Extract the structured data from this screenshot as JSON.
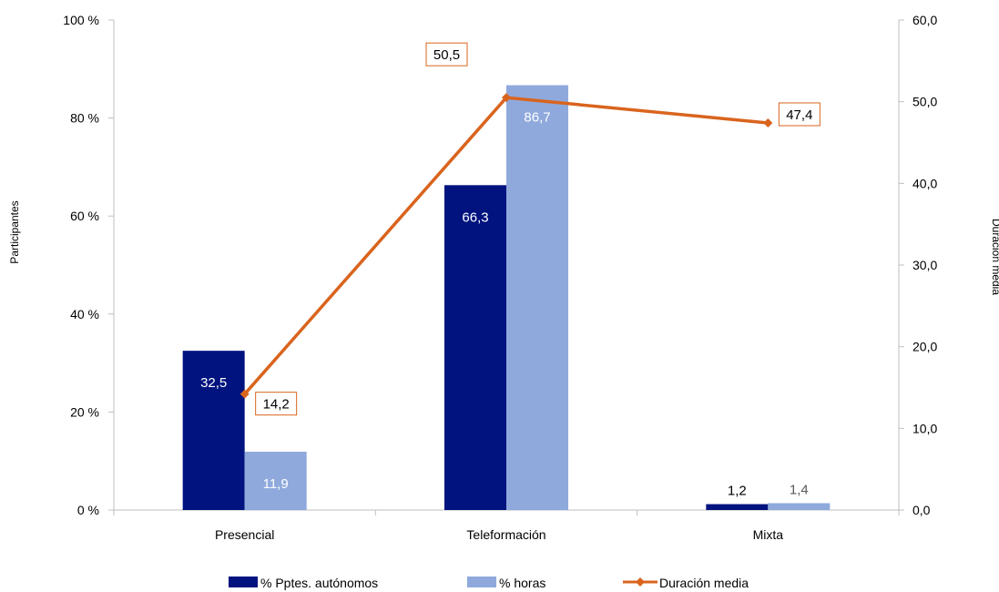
{
  "chart_data": {
    "type": "bar",
    "categories": [
      "Presencial",
      "Teleformación",
      "Mixta"
    ],
    "series": [
      {
        "name": "% Pptes. autónomos",
        "axis": "left",
        "values": [
          32.5,
          66.3,
          1.2
        ],
        "labels": [
          "32,5",
          "66,3",
          "1,2"
        ],
        "color": "#00137f"
      },
      {
        "name": "% horas",
        "axis": "left",
        "values": [
          11.9,
          86.7,
          1.4
        ],
        "labels": [
          "11,9",
          "86,7",
          "1,4"
        ],
        "color": "#8fa9dc"
      },
      {
        "name": "Duración media",
        "type": "line",
        "axis": "right",
        "values": [
          14.2,
          50.5,
          47.4
        ],
        "labels": [
          "14,2",
          "50,5",
          "47,4"
        ],
        "color": "#d9641e"
      }
    ],
    "ylabel": "Participantes",
    "y2label": "Duración media",
    "ylim": [
      0,
      100
    ],
    "y2lim": [
      0,
      60
    ],
    "yticks": [
      "0 %",
      "20 %",
      "40 %",
      "60 %",
      "80 %",
      "100 %"
    ],
    "y2ticks": [
      "0,0",
      "10,0",
      "20,0",
      "30,0",
      "40,0",
      "50,0",
      "60,0"
    ],
    "grid": false,
    "legend": "bottom"
  }
}
